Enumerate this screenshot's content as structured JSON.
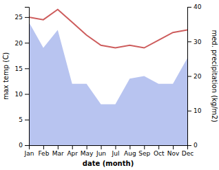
{
  "chart_data": {
    "type": "line",
    "categories": [
      "Jan",
      "Feb",
      "Mar",
      "Apr",
      "May",
      "Jun",
      "Jul",
      "Aug",
      "Sep",
      "Oct",
      "Nov",
      "Dec"
    ],
    "x_label": "date (month)",
    "y_label": "max temp (C)",
    "y2_label": "med. precipitation (kg/m2)",
    "series": [
      {
        "type": "area",
        "color": "#b8c4f0",
        "values": [
          24.0,
          19.0,
          22.5,
          12.0,
          12.0,
          8.0,
          8.0,
          13.0,
          13.5,
          12.0,
          12.0,
          17.0
        ]
      },
      {
        "type": "line",
        "color": "#cd5c5c",
        "values": [
          25.0,
          24.5,
          26.5,
          24.0,
          21.5,
          19.5,
          19.0,
          19.5,
          19.0,
          20.5,
          22.0,
          22.5
        ]
      }
    ],
    "ylim": [
      0,
      27
    ],
    "yticks": [
      0,
      5,
      10,
      15,
      20,
      25
    ],
    "y2lim": [
      0,
      40
    ],
    "y2ticks": [
      0,
      10,
      20,
      30,
      40
    ]
  }
}
